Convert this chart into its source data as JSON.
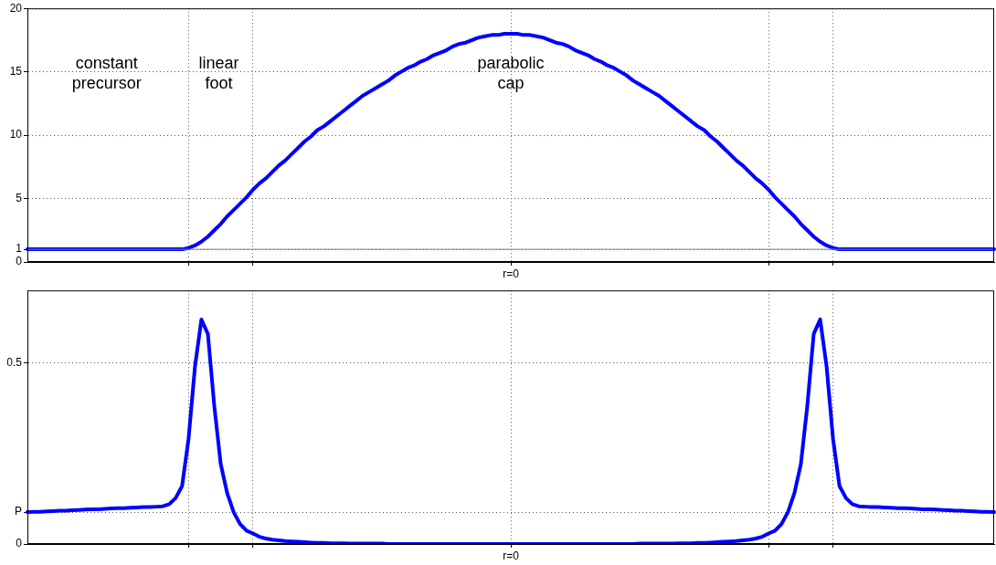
{
  "chart_data": [
    {
      "type": "line",
      "categories": [
        null,
        null,
        null,
        null,
        null,
        null,
        null,
        null,
        null,
        null,
        null,
        null,
        null,
        null,
        null,
        null,
        null,
        null,
        null,
        null,
        null,
        null,
        null,
        null,
        null,
        null,
        null,
        null,
        null,
        null,
        null,
        null,
        null,
        null,
        null,
        null,
        null,
        null,
        null,
        null,
        null,
        null,
        null,
        null,
        null,
        null,
        null,
        null,
        null,
        null,
        null,
        null,
        null,
        null,
        null,
        null,
        null,
        null,
        null,
        null,
        null,
        null,
        null,
        null,
        null,
        null,
        null,
        null,
        null,
        null,
        null,
        null,
        null,
        null,
        null,
        "r=0",
        null,
        null,
        null,
        null,
        null,
        null,
        null,
        null,
        null,
        null,
        null,
        null,
        null,
        null,
        null,
        null,
        null,
        null,
        null,
        null,
        null,
        null,
        null,
        null,
        null,
        null,
        null,
        null,
        null,
        null,
        null,
        null,
        null,
        null,
        null,
        null,
        null,
        null,
        null,
        null,
        null,
        null,
        null,
        null,
        null,
        null,
        null,
        null,
        null,
        null,
        null,
        null,
        null,
        null,
        null,
        null,
        null,
        null,
        null,
        null,
        null,
        null,
        null,
        null,
        null,
        null,
        null,
        null,
        null,
        null,
        null,
        null,
        null,
        null,
        null
      ],
      "series": [
        {
          "color": "#0000ff",
          "values": [
            1,
            1,
            1,
            1,
            1,
            1,
            1,
            1,
            1,
            1,
            1,
            1,
            1,
            1,
            1,
            1,
            1,
            1,
            1,
            1,
            1,
            1,
            1,
            1,
            1,
            1.1,
            1.3,
            1.6,
            2.0,
            2.5,
            3.0,
            3.6,
            4.1,
            4.6,
            5.1,
            5.7,
            6.2,
            6.6,
            7.1,
            7.6,
            8.0,
            8.5,
            9.0,
            9.5,
            9.9,
            10.4,
            10.7,
            11.1,
            11.5,
            11.9,
            12.3,
            12.7,
            13.1,
            13.4,
            13.7,
            14.0,
            14.3,
            14.7,
            15.0,
            15.3,
            15.5,
            15.8,
            16.0,
            16.3,
            16.5,
            16.7,
            17.0,
            17.2,
            17.3,
            17.5,
            17.7,
            17.8,
            17.9,
            17.9,
            18.0,
            18,
            18.0,
            17.9,
            17.9,
            17.8,
            17.7,
            17.5,
            17.3,
            17.2,
            17.0,
            16.7,
            16.5,
            16.3,
            16.0,
            15.8,
            15.5,
            15.3,
            15.0,
            14.7,
            14.3,
            14.0,
            13.7,
            13.4,
            13.1,
            12.7,
            12.3,
            11.9,
            11.5,
            11.1,
            10.7,
            10.4,
            9.9,
            9.5,
            9.0,
            8.5,
            8.0,
            7.6,
            7.1,
            6.6,
            6.2,
            5.7,
            5.1,
            4.6,
            4.1,
            3.6,
            3.0,
            2.5,
            2.0,
            1.6,
            1.3,
            1.1,
            1,
            1,
            1,
            1,
            1,
            1,
            1,
            1,
            1,
            1,
            1,
            1,
            1,
            1,
            1,
            1,
            1,
            1,
            1,
            1,
            1,
            1,
            1,
            1,
            1
          ]
        }
      ],
      "ylim": [
        0,
        20
      ],
      "yticks": [
        0,
        1,
        5,
        10,
        15,
        20
      ],
      "grid": true,
      "marker": "none",
      "legend": false,
      "ref_lines": [
        {
          "axis": "y",
          "value": 1,
          "color": "#808080"
        }
      ],
      "annotations": [
        "constant\nprecursor",
        "linear\nfoot",
        "parabolic\ncap"
      ]
    },
    {
      "type": "line",
      "categories": [
        null,
        null,
        null,
        null,
        null,
        null,
        null,
        null,
        null,
        null,
        null,
        null,
        null,
        null,
        null,
        null,
        null,
        null,
        null,
        null,
        null,
        null,
        null,
        null,
        null,
        null,
        null,
        null,
        null,
        null,
        null,
        null,
        null,
        null,
        null,
        null,
        null,
        null,
        null,
        null,
        null,
        null,
        null,
        null,
        null,
        null,
        null,
        null,
        null,
        null,
        null,
        null,
        null,
        null,
        null,
        null,
        null,
        null,
        null,
        null,
        null,
        null,
        null,
        null,
        null,
        null,
        null,
        null,
        null,
        null,
        null,
        null,
        null,
        null,
        null,
        "r=0",
        null,
        null,
        null,
        null,
        null,
        null,
        null,
        null,
        null,
        null,
        null,
        null,
        null,
        null,
        null,
        null,
        null,
        null,
        null,
        null,
        null,
        null,
        null,
        null,
        null,
        null,
        null,
        null,
        null,
        null,
        null,
        null,
        null,
        null,
        null,
        null,
        null,
        null,
        null,
        null,
        null,
        null,
        null,
        null,
        null,
        null,
        null,
        null,
        null,
        null,
        null,
        null,
        null,
        null,
        null,
        null,
        null,
        null,
        null,
        null,
        null,
        null,
        null,
        null,
        null,
        null,
        null,
        null,
        null,
        null,
        null,
        null,
        null,
        null,
        null
      ],
      "series": [
        {
          "color": "#0000ff",
          "values": [
            0.088,
            0.089,
            0.089,
            0.09,
            0.091,
            0.092,
            0.092,
            0.093,
            0.094,
            0.095,
            0.096,
            0.096,
            0.097,
            0.098,
            0.099,
            0.099,
            0.1,
            0.101,
            0.102,
            0.102,
            0.103,
            0.104,
            0.11,
            0.127,
            0.16,
            0.29,
            0.49,
            0.62,
            0.58,
            0.38,
            0.22,
            0.14,
            0.088,
            0.055,
            0.037,
            0.029,
            0.02,
            0.015,
            0.012,
            0.01,
            0.008,
            0.007,
            0.006,
            0.005,
            0.004,
            0.003,
            0.003,
            0.002,
            0.002,
            0.002,
            0.001,
            0.001,
            0.001,
            0.001,
            0.001,
            0.001,
            0,
            0,
            0,
            0,
            0,
            0,
            0,
            0,
            0,
            0,
            0,
            0,
            0,
            0,
            0,
            0,
            0,
            0,
            0,
            0,
            0,
            0,
            0,
            0,
            0,
            0,
            0,
            0,
            0,
            0,
            0,
            0,
            0,
            0,
            0,
            0,
            0,
            0,
            0,
            0.001,
            0.001,
            0.001,
            0.001,
            0.001,
            0.001,
            0.002,
            0.002,
            0.002,
            0.003,
            0.003,
            0.004,
            0.005,
            0.006,
            0.007,
            0.008,
            0.01,
            0.012,
            0.015,
            0.02,
            0.029,
            0.037,
            0.055,
            0.088,
            0.14,
            0.22,
            0.38,
            0.58,
            0.62,
            0.49,
            0.29,
            0.16,
            0.127,
            0.11,
            0.104,
            0.103,
            0.102,
            0.102,
            0.101,
            0.1,
            0.099,
            0.099,
            0.098,
            0.097,
            0.096,
            0.096,
            0.095,
            0.094,
            0.093,
            0.092,
            0.092,
            0.091,
            0.09,
            0.089,
            0.089,
            0.088
          ]
        }
      ],
      "ylim": [
        0,
        0.7
      ],
      "yticks": [
        0,
        {
          "value": 0.088,
          "label": "P"
        },
        0.5
      ],
      "grid": true,
      "marker": "none",
      "legend": false
    }
  ]
}
